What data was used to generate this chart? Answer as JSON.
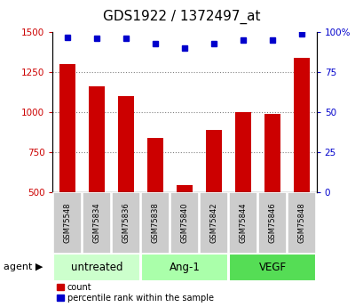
{
  "title": "GDS1922 / 1372497_at",
  "samples": [
    "GSM75548",
    "GSM75834",
    "GSM75836",
    "GSM75838",
    "GSM75840",
    "GSM75842",
    "GSM75844",
    "GSM75846",
    "GSM75848"
  ],
  "counts": [
    1300,
    1160,
    1100,
    840,
    540,
    890,
    1000,
    990,
    1340
  ],
  "percentiles": [
    97,
    96,
    96,
    93,
    90,
    93,
    95,
    95,
    99
  ],
  "bar_color": "#cc0000",
  "dot_color": "#0000cc",
  "left_ylim": [
    500,
    1500
  ],
  "right_ylim": [
    0,
    100
  ],
  "left_yticks": [
    500,
    750,
    1000,
    1250,
    1500
  ],
  "right_yticks": [
    0,
    25,
    50,
    75,
    100
  ],
  "right_yticklabels": [
    "0",
    "25",
    "50",
    "75",
    "100%"
  ],
  "groups": [
    {
      "label": "untreated",
      "indices": [
        0,
        1,
        2
      ],
      "color": "#ccffcc"
    },
    {
      "label": "Ang-1",
      "indices": [
        3,
        4,
        5
      ],
      "color": "#aaffaa"
    },
    {
      "label": "VEGF",
      "indices": [
        6,
        7,
        8
      ],
      "color": "#55dd55"
    }
  ],
  "legend_items": [
    {
      "label": "count",
      "color": "#cc0000"
    },
    {
      "label": "percentile rank within the sample",
      "color": "#0000cc"
    }
  ],
  "grid_yticks": [
    750,
    1000,
    1250
  ],
  "sample_box_color": "#cccccc",
  "title_fontsize": 11,
  "tick_fontsize": 7.5,
  "sample_fontsize": 6,
  "group_fontsize": 8.5,
  "legend_fontsize": 7,
  "figsize": [
    4.1,
    3.45
  ],
  "dpi": 100
}
